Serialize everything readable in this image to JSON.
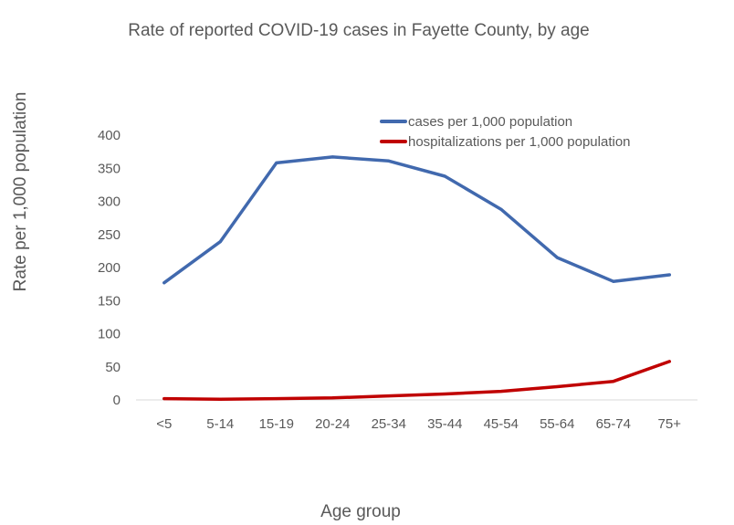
{
  "chart_data": {
    "type": "line",
    "title": "Rate of reported COVID-19 cases in Fayette County, by age",
    "xlabel": "Age group",
    "ylabel": "Rate per 1,000 population",
    "categories": [
      "<5",
      "5-14",
      "15-19",
      "20-24",
      "25-34",
      "35-44",
      "45-54",
      "55-64",
      "65-74",
      "75+"
    ],
    "ylim": [
      0,
      400
    ],
    "yticks": [
      0,
      50,
      100,
      150,
      200,
      250,
      300,
      350,
      400
    ],
    "grid": false,
    "legend_position": "top-right",
    "series": [
      {
        "name": "cases per 1,000 population",
        "color": "#4169AE",
        "values": [
          177,
          239,
          358,
          367,
          361,
          338,
          288,
          215,
          179,
          189
        ]
      },
      {
        "name": "hospitalizations per 1,000 population",
        "color": "#C00000",
        "values": [
          2,
          1,
          2,
          3,
          6,
          9,
          13,
          20,
          28,
          58
        ]
      }
    ]
  }
}
